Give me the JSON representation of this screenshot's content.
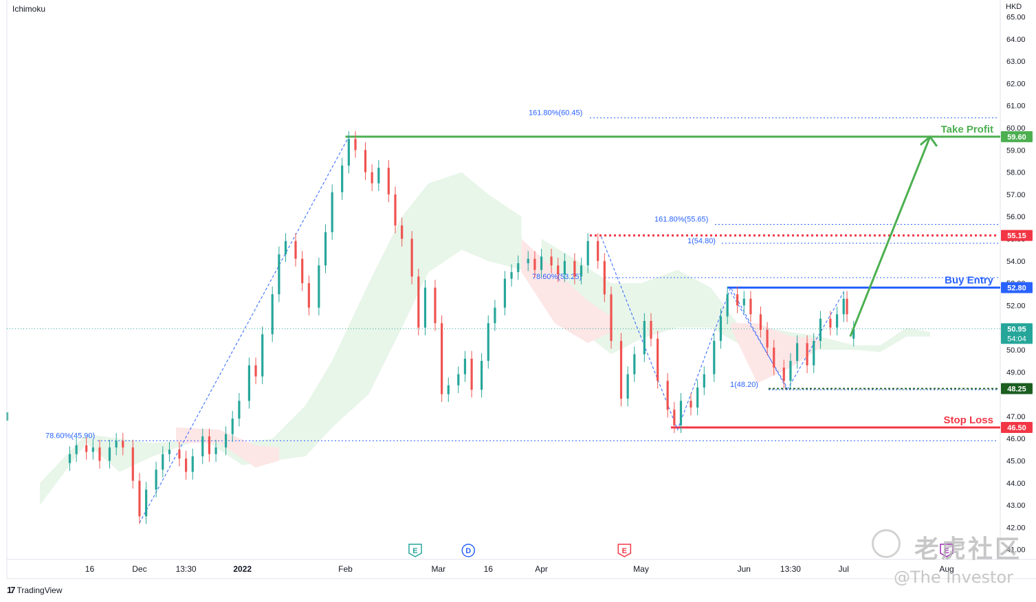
{
  "header": {
    "indicator": "Ichimoku",
    "currency": "HKD"
  },
  "brand": {
    "name": "TradingView",
    "icon": "tradingview-logo-icon"
  },
  "watermark": {
    "cn": "老虎社区",
    "en": "@The Investor",
    "icon": "tiger-community-logo-icon"
  },
  "colors": {
    "up": "#26a69a",
    "down": "#ef5350",
    "take_profit": "#4caf50",
    "stop_loss": "#f23645",
    "entry": "#2962ff",
    "fib": "#2962ff",
    "cloud_bull": "#e8f5e9",
    "cloud_bear": "#fde6e6"
  },
  "chart_data": {
    "type": "candlestick",
    "symbol_currency": "HKD",
    "y_axis": {
      "ticks": [
        "41.00",
        "42.00",
        "43.00",
        "44.00",
        "45.00",
        "46.00",
        "47.00",
        "49.00",
        "50.00",
        "51.00",
        "52.00",
        "53.00",
        "54.00",
        "55.00",
        "56.00",
        "57.00",
        "58.00",
        "59.00",
        "60.00",
        "61.00",
        "62.00",
        "63.00",
        "64.00",
        "65.00"
      ],
      "range": [
        41,
        65
      ]
    },
    "x_axis": {
      "ticks": [
        "16",
        "Dec",
        "13:30",
        "2022",
        "Feb",
        "Mar",
        "16",
        "Apr",
        "May",
        "Jun",
        "13:30",
        "Jul",
        "Aug"
      ]
    },
    "price_tags": [
      {
        "label": "59.60",
        "value": 59.6,
        "color": "#4caf50"
      },
      {
        "label": "55.15",
        "value": 55.15,
        "color": "#f23645"
      },
      {
        "label": "52.80",
        "value": 52.8,
        "color": "#2962ff"
      },
      {
        "label": "50.95",
        "sub": "54:04",
        "value": 50.95,
        "color": "#26a69a"
      },
      {
        "label": "48.25",
        "value": 48.25,
        "color": "#1b5e20"
      },
      {
        "label": "46.50",
        "value": 46.5,
        "color": "#f23645"
      }
    ],
    "levels": [
      {
        "name": "Take Profit",
        "value": 59.6,
        "color": "#4caf50",
        "from_date": "2022-02-01"
      },
      {
        "name": "Buy Entry",
        "value": 52.8,
        "color": "#2962ff",
        "from_date": "2022-05-27"
      },
      {
        "name": "Stop Loss",
        "value": 46.5,
        "color": "#f23645",
        "from_date": "2022-05-10"
      }
    ],
    "fib_labels": [
      {
        "text": "161.80%(60.45)",
        "value": 60.45
      },
      {
        "text": "161.80%(55.65)",
        "value": 55.65
      },
      {
        "text": "1(54.80)",
        "value": 54.8
      },
      {
        "text": "78.60%(53.25)",
        "value": 53.25
      },
      {
        "text": "1(48.20)",
        "value": 48.2
      },
      {
        "text": "78.60%(45.90)",
        "value": 45.9
      }
    ],
    "extra_levels": [
      55.15,
      48.25
    ],
    "last_price": 50.95,
    "events": [
      {
        "label": "E",
        "kind": "earnings",
        "color": "#26a69a",
        "date": "2022-02-22"
      },
      {
        "label": "D",
        "kind": "dividend",
        "color": "#2962ff",
        "date": "2022-03-10"
      },
      {
        "label": "E",
        "kind": "earnings",
        "color": "#f23645",
        "date": "2022-04-26"
      },
      {
        "label": "E",
        "kind": "earnings",
        "color": "#9c27b0",
        "date": "2022-08-01"
      }
    ],
    "projection": {
      "from": {
        "date": "2022-07-03",
        "value": 50.6
      },
      "to": {
        "date": "2022-07-27",
        "value": 59.6
      }
    },
    "candles": [
      {
        "date": "2021-11-10",
        "o": 44.9,
        "c": 45.3
      },
      {
        "date": "2021-11-12",
        "o": 45.3,
        "c": 45.7
      },
      {
        "date": "2021-11-15",
        "o": 45.7,
        "c": 45.4
      },
      {
        "date": "2021-11-17",
        "o": 45.4,
        "c": 45.6
      },
      {
        "date": "2021-11-19",
        "o": 45.6,
        "c": 45.0
      },
      {
        "date": "2021-11-22",
        "o": 45.0,
        "c": 45.6
      },
      {
        "date": "2021-11-24",
        "o": 45.6,
        "c": 45.9
      },
      {
        "date": "2021-11-26",
        "o": 45.9,
        "c": 45.6
      },
      {
        "date": "2021-11-29",
        "o": 45.6,
        "c": 44.1
      },
      {
        "date": "2021-12-01",
        "o": 44.1,
        "c": 42.5
      },
      {
        "date": "2021-12-03",
        "o": 42.5,
        "c": 43.7
      },
      {
        "date": "2021-12-06",
        "o": 43.7,
        "c": 44.6
      },
      {
        "date": "2021-12-08",
        "o": 44.6,
        "c": 45.3
      },
      {
        "date": "2021-12-10",
        "o": 45.3,
        "c": 45.5
      },
      {
        "date": "2021-12-13",
        "o": 45.5,
        "c": 45.1
      },
      {
        "date": "2021-12-15",
        "o": 45.1,
        "c": 44.5
      },
      {
        "date": "2021-12-17",
        "o": 44.5,
        "c": 45.2
      },
      {
        "date": "2021-12-20",
        "o": 45.2,
        "c": 46.1
      },
      {
        "date": "2021-12-22",
        "o": 46.1,
        "c": 45.3
      },
      {
        "date": "2021-12-24",
        "o": 45.3,
        "c": 45.6
      },
      {
        "date": "2021-12-27",
        "o": 45.6,
        "c": 46.2
      },
      {
        "date": "2021-12-29",
        "o": 46.2,
        "c": 46.9
      },
      {
        "date": "2021-12-31",
        "o": 46.9,
        "c": 47.7
      },
      {
        "date": "2022-01-03",
        "o": 47.7,
        "c": 49.3
      },
      {
        "date": "2022-01-05",
        "o": 49.3,
        "c": 48.8
      },
      {
        "date": "2022-01-07",
        "o": 48.8,
        "c": 50.7
      },
      {
        "date": "2022-01-10",
        "o": 50.7,
        "c": 52.5
      },
      {
        "date": "2022-01-12",
        "o": 52.5,
        "c": 54.3
      },
      {
        "date": "2022-01-14",
        "o": 54.3,
        "c": 54.9
      },
      {
        "date": "2022-01-17",
        "o": 54.9,
        "c": 54.1
      },
      {
        "date": "2022-01-19",
        "o": 54.1,
        "c": 53.0
      },
      {
        "date": "2022-01-21",
        "o": 53.0,
        "c": 51.9
      },
      {
        "date": "2022-01-24",
        "o": 51.9,
        "c": 53.8
      },
      {
        "date": "2022-01-26",
        "o": 53.8,
        "c": 55.3
      },
      {
        "date": "2022-01-28",
        "o": 55.3,
        "c": 57.1
      },
      {
        "date": "2022-01-31",
        "o": 57.1,
        "c": 58.3
      },
      {
        "date": "2022-02-02",
        "o": 58.3,
        "c": 59.5
      },
      {
        "date": "2022-02-04",
        "o": 59.5,
        "c": 59.0
      },
      {
        "date": "2022-02-07",
        "o": 59.0,
        "c": 58.0
      },
      {
        "date": "2022-02-09",
        "o": 58.0,
        "c": 57.5
      },
      {
        "date": "2022-02-11",
        "o": 57.5,
        "c": 58.2
      },
      {
        "date": "2022-02-14",
        "o": 58.2,
        "c": 57.0
      },
      {
        "date": "2022-02-16",
        "o": 57.0,
        "c": 55.6
      },
      {
        "date": "2022-02-18",
        "o": 55.6,
        "c": 55.0
      },
      {
        "date": "2022-02-21",
        "o": 55.0,
        "c": 53.3
      },
      {
        "date": "2022-02-23",
        "o": 53.3,
        "c": 51.0
      },
      {
        "date": "2022-02-25",
        "o": 51.0,
        "c": 52.8
      },
      {
        "date": "2022-02-28",
        "o": 52.8,
        "c": 51.2
      },
      {
        "date": "2022-03-02",
        "o": 51.2,
        "c": 48.0
      },
      {
        "date": "2022-03-04",
        "o": 48.0,
        "c": 48.4
      },
      {
        "date": "2022-03-07",
        "o": 48.4,
        "c": 48.9
      },
      {
        "date": "2022-03-09",
        "o": 48.9,
        "c": 49.6
      },
      {
        "date": "2022-03-11",
        "o": 49.6,
        "c": 48.2
      },
      {
        "date": "2022-03-14",
        "o": 48.2,
        "c": 49.5
      },
      {
        "date": "2022-03-16",
        "o": 49.5,
        "c": 51.2
      },
      {
        "date": "2022-03-18",
        "o": 51.2,
        "c": 51.9
      },
      {
        "date": "2022-03-21",
        "o": 51.9,
        "c": 53.2
      },
      {
        "date": "2022-03-23",
        "o": 53.2,
        "c": 53.5
      },
      {
        "date": "2022-03-25",
        "o": 53.5,
        "c": 53.9
      },
      {
        "date": "2022-03-28",
        "o": 53.9,
        "c": 54.1
      },
      {
        "date": "2022-03-30",
        "o": 54.1,
        "c": 53.6
      },
      {
        "date": "2022-04-01",
        "o": 53.6,
        "c": 54.2
      },
      {
        "date": "2022-04-04",
        "o": 54.2,
        "c": 53.8
      },
      {
        "date": "2022-04-06",
        "o": 53.8,
        "c": 53.4
      },
      {
        "date": "2022-04-08",
        "o": 53.4,
        "c": 54.0
      },
      {
        "date": "2022-04-11",
        "o": 54.0,
        "c": 53.3
      },
      {
        "date": "2022-04-13",
        "o": 53.3,
        "c": 53.8
      },
      {
        "date": "2022-04-15",
        "o": 53.8,
        "c": 54.9
      },
      {
        "date": "2022-04-18",
        "o": 54.9,
        "c": 54.0
      },
      {
        "date": "2022-04-20",
        "o": 54.0,
        "c": 52.5
      },
      {
        "date": "2022-04-22",
        "o": 52.5,
        "c": 50.4
      },
      {
        "date": "2022-04-25",
        "o": 50.4,
        "c": 47.8
      },
      {
        "date": "2022-04-27",
        "o": 47.8,
        "c": 48.9
      },
      {
        "date": "2022-04-29",
        "o": 48.9,
        "c": 49.8
      },
      {
        "date": "2022-05-02",
        "o": 49.8,
        "c": 51.3
      },
      {
        "date": "2022-05-04",
        "o": 51.3,
        "c": 50.5
      },
      {
        "date": "2022-05-06",
        "o": 50.5,
        "c": 48.6
      },
      {
        "date": "2022-05-09",
        "o": 48.6,
        "c": 47.3
      },
      {
        "date": "2022-05-11",
        "o": 47.3,
        "c": 46.6
      },
      {
        "date": "2022-05-13",
        "o": 46.6,
        "c": 47.7
      },
      {
        "date": "2022-05-16",
        "o": 47.7,
        "c": 47.4
      },
      {
        "date": "2022-05-18",
        "o": 47.4,
        "c": 48.3
      },
      {
        "date": "2022-05-20",
        "o": 48.3,
        "c": 48.9
      },
      {
        "date": "2022-05-23",
        "o": 48.9,
        "c": 50.4
      },
      {
        "date": "2022-05-25",
        "o": 50.4,
        "c": 51.5
      },
      {
        "date": "2022-05-27",
        "o": 51.5,
        "c": 52.5
      },
      {
        "date": "2022-05-30",
        "o": 52.5,
        "c": 52.0
      },
      {
        "date": "2022-06-01",
        "o": 52.0,
        "c": 52.3
      },
      {
        "date": "2022-06-03",
        "o": 52.3,
        "c": 51.6
      },
      {
        "date": "2022-06-06",
        "o": 51.6,
        "c": 50.9
      },
      {
        "date": "2022-06-08",
        "o": 50.9,
        "c": 50.1
      },
      {
        "date": "2022-06-10",
        "o": 50.1,
        "c": 49.2
      },
      {
        "date": "2022-06-13",
        "o": 49.2,
        "c": 48.6
      },
      {
        "date": "2022-06-15",
        "o": 48.6,
        "c": 49.5
      },
      {
        "date": "2022-06-17",
        "o": 49.5,
        "c": 50.3
      },
      {
        "date": "2022-06-20",
        "o": 50.3,
        "c": 49.3
      },
      {
        "date": "2022-06-22",
        "o": 49.3,
        "c": 50.4
      },
      {
        "date": "2022-06-24",
        "o": 50.4,
        "c": 51.4
      },
      {
        "date": "2022-06-27",
        "o": 51.4,
        "c": 51.0
      },
      {
        "date": "2022-06-29",
        "o": 51.0,
        "c": 51.6
      },
      {
        "date": "2022-07-01",
        "o": 51.6,
        "c": 52.3
      },
      {
        "date": "2022-07-02",
        "o": 52.3,
        "c": 51.6
      },
      {
        "date": "2022-07-04",
        "o": 50.5,
        "c": 50.95
      }
    ]
  }
}
